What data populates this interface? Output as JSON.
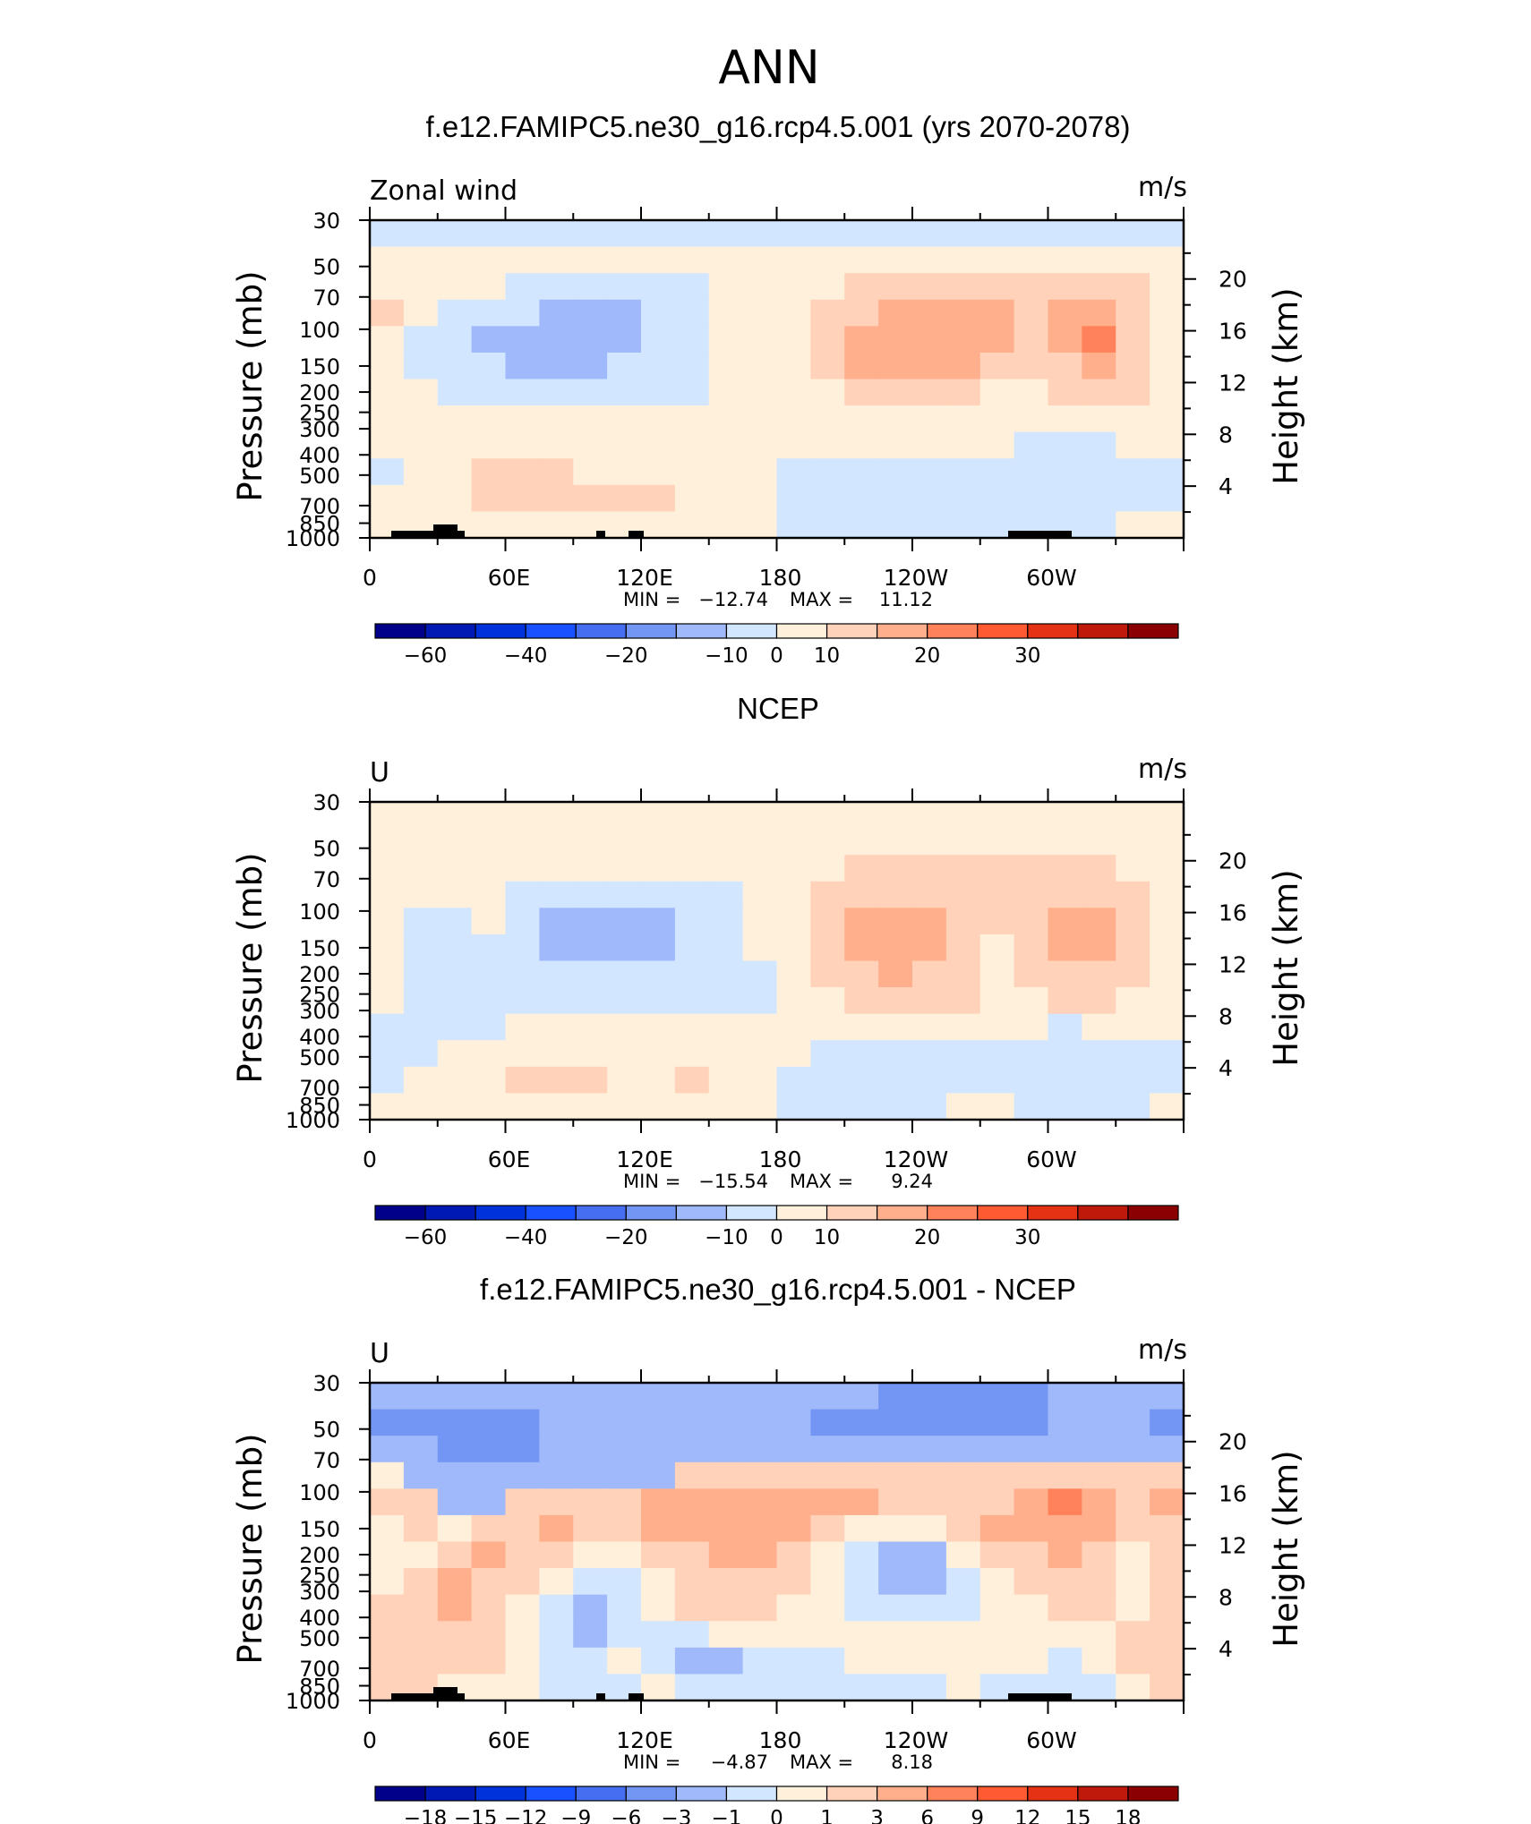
{
  "title": "ANN",
  "colors": {
    "full": [
      "#00008b",
      "#0019b4",
      "#0032dc",
      "#1950ff",
      "#466ef0",
      "#7396f5",
      "#a0b9fa",
      "#d2e6ff",
      "#fff0dc",
      "#ffd2b9",
      "#ffaf8c",
      "#ff825a",
      "#ff5a32",
      "#e63214",
      "#be190a",
      "#8b0000"
    ],
    "diff": [
      "#00008b",
      "#0019b4",
      "#0032dc",
      "#1950ff",
      "#466ef0",
      "#7396f5",
      "#a0b9fa",
      "#d2e6ff",
      "#fff0dc",
      "#ffd2b9",
      "#ffaf8c",
      "#ff825a",
      "#ff5a32",
      "#e63214",
      "#be190a",
      "#8b0000"
    ]
  },
  "chart_data": [
    {
      "type": "heatmap",
      "title": "f.e12.FAMIPC5.ne30_g16.rcp4.5.001 (yrs 2070-2078)",
      "corner_label": "Zonal wind",
      "units": "m/s",
      "ylabel": "Pressure (mb)",
      "ylabel2": "Height (km)",
      "xticks": [
        "0",
        "60E",
        "120E",
        "180",
        "120W",
        "60W"
      ],
      "yticks": [
        "30",
        "50",
        "70",
        "100",
        "150",
        "200",
        "250",
        "300",
        "400",
        "500",
        "700",
        "850",
        "1000"
      ],
      "yticks2": [
        "20",
        "16",
        "12",
        "8",
        "4"
      ],
      "min_label": "MIN =",
      "min_value": "−12.74",
      "max_label": "MAX =",
      "max_value": "11.12",
      "colorbar_labels": [
        "−60",
        "−40",
        "−20",
        "−10",
        "0",
        "10",
        "20",
        "30"
      ],
      "cells": [
        [
          7,
          7,
          7,
          7,
          7,
          7,
          7,
          7,
          7,
          7,
          7,
          7,
          7,
          7,
          7,
          7,
          7,
          7,
          7,
          7,
          7,
          7,
          7,
          7
        ],
        [
          8,
          8,
          8,
          8,
          8,
          8,
          8,
          8,
          8,
          8,
          8,
          8,
          8,
          8,
          8,
          8,
          8,
          8,
          8,
          8,
          8,
          8,
          8,
          8
        ],
        [
          8,
          8,
          8,
          8,
          7,
          7,
          7,
          7,
          7,
          7,
          8,
          8,
          8,
          8,
          9,
          9,
          9,
          9,
          9,
          9,
          9,
          9,
          9,
          8
        ],
        [
          9,
          8,
          7,
          7,
          7,
          6,
          6,
          6,
          7,
          7,
          8,
          8,
          8,
          9,
          9,
          10,
          10,
          10,
          10,
          9,
          10,
          10,
          9,
          8
        ],
        [
          8,
          7,
          7,
          6,
          6,
          6,
          6,
          6,
          7,
          7,
          8,
          8,
          8,
          9,
          10,
          10,
          10,
          10,
          10,
          9,
          10,
          11,
          9,
          8
        ],
        [
          8,
          7,
          7,
          7,
          6,
          6,
          6,
          7,
          7,
          7,
          8,
          8,
          8,
          9,
          10,
          10,
          10,
          10,
          9,
          9,
          9,
          10,
          9,
          8
        ],
        [
          8,
          8,
          7,
          7,
          7,
          7,
          7,
          7,
          7,
          7,
          8,
          8,
          8,
          8,
          9,
          9,
          9,
          9,
          8,
          8,
          9,
          9,
          9,
          8
        ],
        [
          8,
          8,
          8,
          8,
          8,
          8,
          8,
          8,
          8,
          8,
          8,
          8,
          8,
          8,
          8,
          8,
          8,
          8,
          8,
          8,
          8,
          8,
          8,
          8
        ],
        [
          8,
          8,
          8,
          8,
          8,
          8,
          8,
          8,
          8,
          8,
          8,
          8,
          8,
          8,
          8,
          8,
          8,
          8,
          8,
          7,
          7,
          7,
          8,
          8
        ],
        [
          7,
          8,
          8,
          9,
          9,
          9,
          8,
          8,
          8,
          8,
          8,
          8,
          7,
          7,
          7,
          7,
          7,
          7,
          7,
          7,
          7,
          7,
          7,
          7
        ],
        [
          8,
          8,
          8,
          9,
          9,
          9,
          9,
          9,
          9,
          8,
          8,
          8,
          7,
          7,
          7,
          7,
          7,
          7,
          7,
          7,
          7,
          7,
          7,
          7
        ],
        [
          8,
          8,
          8,
          8,
          8,
          8,
          8,
          8,
          8,
          8,
          8,
          8,
          7,
          7,
          7,
          7,
          7,
          7,
          7,
          7,
          7,
          7,
          8,
          8
        ]
      ]
    },
    {
      "type": "heatmap",
      "title": "NCEP",
      "corner_label": "U",
      "units": "m/s",
      "ylabel": "Pressure (mb)",
      "ylabel2": "Height (km)",
      "xticks": [
        "0",
        "60E",
        "120E",
        "180",
        "120W",
        "60W"
      ],
      "yticks": [
        "30",
        "50",
        "70",
        "100",
        "150",
        "200",
        "250",
        "300",
        "400",
        "500",
        "700",
        "850",
        "1000"
      ],
      "yticks2": [
        "20",
        "16",
        "12",
        "8",
        "4"
      ],
      "min_label": "MIN =",
      "min_value": "−15.54",
      "max_label": "MAX =",
      "max_value": "9.24",
      "colorbar_labels": [
        "−60",
        "−40",
        "−20",
        "−10",
        "0",
        "10",
        "20",
        "30"
      ],
      "cells": [
        [
          8,
          8,
          8,
          8,
          8,
          8,
          8,
          8,
          8,
          8,
          8,
          8,
          8,
          8,
          8,
          8,
          8,
          8,
          8,
          8,
          8,
          8,
          8,
          8
        ],
        [
          8,
          8,
          8,
          8,
          8,
          8,
          8,
          8,
          8,
          8,
          8,
          8,
          8,
          8,
          8,
          8,
          8,
          8,
          8,
          8,
          8,
          8,
          8,
          8
        ],
        [
          8,
          8,
          8,
          8,
          8,
          8,
          8,
          8,
          8,
          8,
          8,
          8,
          8,
          8,
          9,
          9,
          9,
          9,
          9,
          9,
          9,
          9,
          8,
          8
        ],
        [
          8,
          8,
          8,
          8,
          7,
          7,
          7,
          7,
          7,
          7,
          7,
          8,
          8,
          9,
          9,
          9,
          9,
          9,
          9,
          9,
          9,
          9,
          9,
          8
        ],
        [
          8,
          7,
          7,
          8,
          7,
          6,
          6,
          6,
          6,
          7,
          7,
          8,
          8,
          9,
          10,
          10,
          10,
          9,
          9,
          9,
          10,
          10,
          9,
          8
        ],
        [
          8,
          7,
          7,
          7,
          7,
          6,
          6,
          6,
          6,
          7,
          7,
          8,
          8,
          9,
          10,
          10,
          10,
          9,
          8,
          9,
          10,
          10,
          9,
          8
        ],
        [
          8,
          7,
          7,
          7,
          7,
          7,
          7,
          7,
          7,
          7,
          7,
          7,
          8,
          9,
          9,
          10,
          9,
          9,
          8,
          9,
          9,
          9,
          9,
          8
        ],
        [
          8,
          7,
          7,
          7,
          7,
          7,
          7,
          7,
          7,
          7,
          7,
          7,
          8,
          8,
          9,
          9,
          9,
          9,
          8,
          8,
          9,
          9,
          8,
          8
        ],
        [
          7,
          7,
          7,
          7,
          8,
          8,
          8,
          8,
          8,
          8,
          8,
          8,
          8,
          8,
          8,
          8,
          8,
          8,
          8,
          8,
          7,
          8,
          8,
          8
        ],
        [
          7,
          7,
          8,
          8,
          8,
          8,
          8,
          8,
          8,
          8,
          8,
          8,
          8,
          7,
          7,
          7,
          7,
          7,
          7,
          7,
          7,
          7,
          7,
          7
        ],
        [
          7,
          8,
          8,
          8,
          9,
          9,
          9,
          8,
          8,
          9,
          8,
          8,
          7,
          7,
          7,
          7,
          7,
          7,
          7,
          7,
          7,
          7,
          7,
          7
        ],
        [
          8,
          8,
          8,
          8,
          8,
          8,
          8,
          8,
          8,
          8,
          8,
          8,
          7,
          7,
          7,
          7,
          7,
          8,
          8,
          7,
          7,
          7,
          7,
          8
        ]
      ]
    },
    {
      "type": "heatmap",
      "title": "f.e12.FAMIPC5.ne30_g16.rcp4.5.001 - NCEP",
      "corner_label": "U",
      "units": "m/s",
      "ylabel": "Pressure (mb)",
      "ylabel2": "Height (km)",
      "xticks": [
        "0",
        "60E",
        "120E",
        "180",
        "120W",
        "60W"
      ],
      "yticks": [
        "30",
        "50",
        "70",
        "100",
        "150",
        "200",
        "250",
        "300",
        "400",
        "500",
        "700",
        "850",
        "1000"
      ],
      "yticks2": [
        "20",
        "16",
        "12",
        "8",
        "4"
      ],
      "min_label": "MIN =",
      "min_value": "−4.87",
      "max_label": "MAX =",
      "max_value": "8.18",
      "colorbar_labels": [
        "−18",
        "−15",
        "−12",
        "−9",
        "−6",
        "−3",
        "−1",
        "0",
        "1",
        "3",
        "6",
        "9",
        "12",
        "15",
        "18"
      ],
      "cells": [
        [
          6,
          6,
          6,
          6,
          6,
          6,
          6,
          6,
          6,
          6,
          6,
          6,
          6,
          6,
          6,
          5,
          5,
          5,
          5,
          5,
          6,
          6,
          6,
          6
        ],
        [
          5,
          5,
          5,
          5,
          5,
          6,
          6,
          6,
          6,
          6,
          6,
          6,
          6,
          5,
          5,
          5,
          5,
          5,
          5,
          5,
          6,
          6,
          6,
          5
        ],
        [
          6,
          6,
          5,
          5,
          5,
          6,
          6,
          6,
          6,
          6,
          6,
          6,
          6,
          6,
          6,
          6,
          6,
          6,
          6,
          6,
          6,
          6,
          6,
          6
        ],
        [
          8,
          6,
          6,
          6,
          6,
          6,
          6,
          6,
          6,
          9,
          9,
          9,
          9,
          9,
          9,
          9,
          9,
          9,
          9,
          9,
          9,
          9,
          9,
          9
        ],
        [
          9,
          9,
          6,
          6,
          9,
          9,
          9,
          9,
          10,
          10,
          10,
          10,
          10,
          10,
          10,
          9,
          9,
          9,
          9,
          10,
          11,
          10,
          9,
          10
        ],
        [
          8,
          9,
          8,
          9,
          9,
          10,
          9,
          9,
          10,
          10,
          10,
          10,
          10,
          9,
          8,
          8,
          8,
          9,
          10,
          10,
          10,
          10,
          9,
          9
        ],
        [
          8,
          8,
          9,
          10,
          9,
          9,
          8,
          8,
          9,
          9,
          10,
          10,
          9,
          8,
          7,
          6,
          6,
          8,
          9,
          9,
          10,
          9,
          8,
          9
        ],
        [
          8,
          9,
          10,
          9,
          9,
          8,
          7,
          7,
          8,
          9,
          9,
          9,
          9,
          8,
          7,
          6,
          6,
          7,
          8,
          9,
          9,
          9,
          8,
          9
        ],
        [
          9,
          9,
          10,
          9,
          8,
          7,
          6,
          7,
          8,
          9,
          9,
          9,
          8,
          8,
          7,
          7,
          7,
          7,
          8,
          8,
          9,
          9,
          8,
          9
        ],
        [
          9,
          9,
          9,
          9,
          8,
          7,
          6,
          7,
          7,
          7,
          8,
          8,
          8,
          8,
          8,
          8,
          8,
          8,
          8,
          8,
          8,
          8,
          9,
          9
        ],
        [
          9,
          9,
          9,
          9,
          8,
          7,
          7,
          8,
          7,
          6,
          6,
          7,
          7,
          7,
          8,
          8,
          8,
          8,
          8,
          8,
          7,
          8,
          9,
          9
        ],
        [
          9,
          9,
          8,
          8,
          8,
          7,
          7,
          7,
          8,
          7,
          7,
          7,
          7,
          7,
          7,
          7,
          7,
          8,
          7,
          7,
          7,
          7,
          8,
          9
        ]
      ]
    }
  ]
}
